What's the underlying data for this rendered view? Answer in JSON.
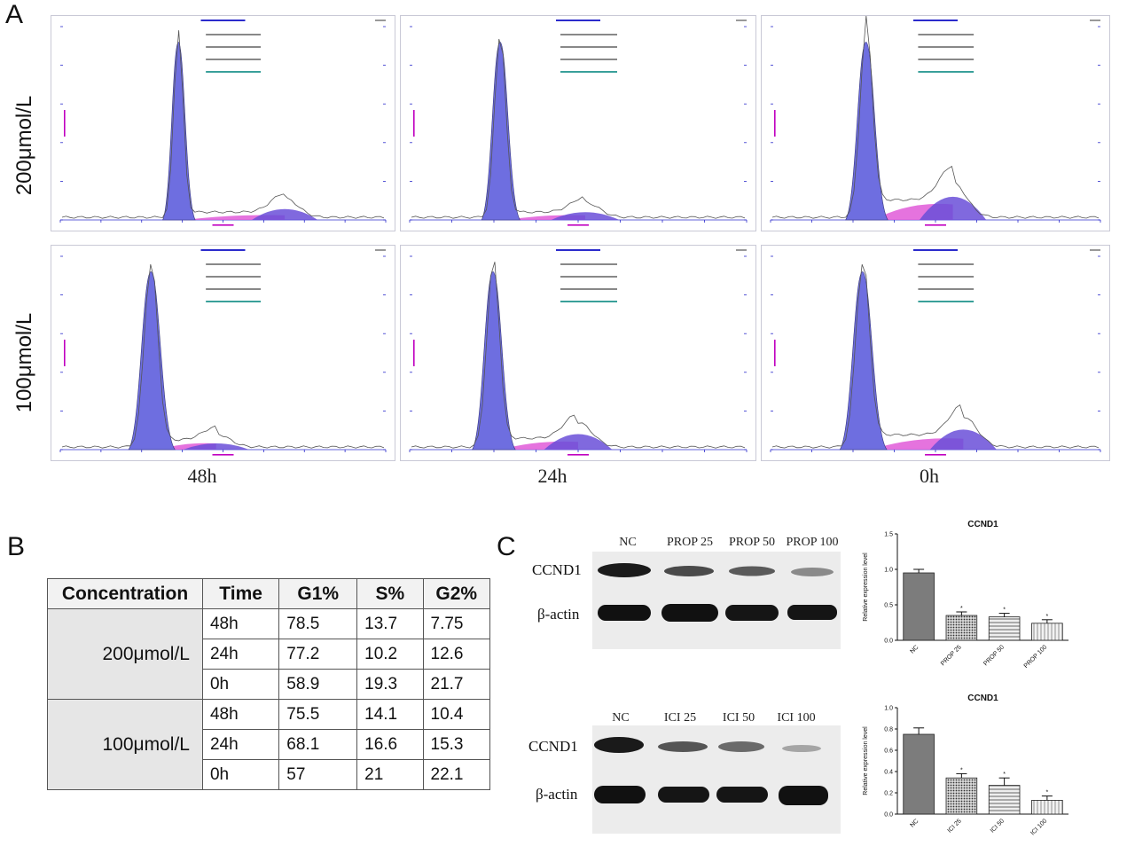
{
  "panel_a": {
    "letter": "A",
    "row_labels": [
      "200μmol/L",
      "100μmol/L"
    ],
    "col_labels": [
      "48h",
      "24h",
      "0h"
    ]
  },
  "panel_b": {
    "letter": "B",
    "headers": [
      "Concentration",
      "Time",
      "G1%",
      "S%",
      "G2%"
    ],
    "groups": [
      {
        "concentration": "200μmol/L",
        "rows": [
          {
            "time": "48h",
            "g1": "78.5",
            "s": "13.7",
            "g2": "7.75"
          },
          {
            "time": "24h",
            "g1": "77.2",
            "s": "10.2",
            "g2": "12.6"
          },
          {
            "time": "0h",
            "g1": "58.9",
            "s": "19.3",
            "g2": "21.7"
          }
        ]
      },
      {
        "concentration": "100μmol/L",
        "rows": [
          {
            "time": "48h",
            "g1": "75.5",
            "s": "14.1",
            "g2": "10.4"
          },
          {
            "time": "24h",
            "g1": "68.1",
            "s": "16.6",
            "g2": "15.3"
          },
          {
            "time": "0h",
            "g1": "57",
            "s": "21",
            "g2": "22.1"
          }
        ]
      }
    ]
  },
  "panel_c": {
    "letter": "C",
    "top_blot": {
      "lanes": [
        "NC",
        "PROP 25",
        "PROP 50",
        "PROP 100"
      ],
      "rows": [
        "CCND1",
        "β-actin"
      ]
    },
    "bottom_blot": {
      "lanes": [
        "NC",
        "ICI 25",
        "ICI 50",
        "ICI 100"
      ],
      "rows": [
        "CCND1",
        "β-actin"
      ]
    }
  },
  "chart_data": [
    {
      "type": "bar",
      "title": "CCND1",
      "ylabel": "Relative expression level",
      "categories": [
        "NC",
        "PROP 25",
        "PROP 50",
        "PROP 100"
      ],
      "values": [
        0.95,
        0.35,
        0.33,
        0.24
      ],
      "errors": [
        0.05,
        0.05,
        0.05,
        0.05
      ],
      "significance": [
        "",
        "*",
        "*",
        "*"
      ],
      "ylim": [
        0,
        1.5
      ],
      "yticks": [
        "0.0",
        "0.5",
        "1.0",
        "1.5"
      ]
    },
    {
      "type": "bar",
      "title": "CCND1",
      "ylabel": "Relative expression level",
      "categories": [
        "NC",
        "ICI 25",
        "ICI 50",
        "ICI 100"
      ],
      "values": [
        0.75,
        0.34,
        0.27,
        0.13
      ],
      "errors": [
        0.06,
        0.04,
        0.07,
        0.04
      ],
      "significance": [
        "",
        "*",
        "*",
        "*"
      ],
      "ylim": [
        0,
        1.0
      ],
      "yticks": [
        "0.0",
        "0.2",
        "0.4",
        "0.6",
        "0.8",
        "1.0"
      ]
    }
  ]
}
